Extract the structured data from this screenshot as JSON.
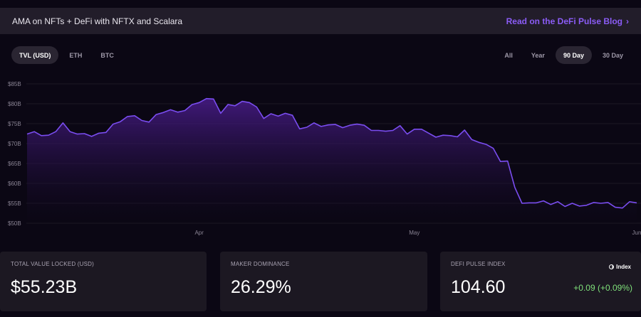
{
  "banner": {
    "text": "AMA on NFTs + DeFi with NFTX and Scalara",
    "link_label": "Read on the DeFi Pulse Blog",
    "link_chevron": "›"
  },
  "metric_tabs": [
    {
      "label": "TVL (USD)",
      "active": true
    },
    {
      "label": "ETH",
      "active": false
    },
    {
      "label": "BTC",
      "active": false
    }
  ],
  "range_tabs": [
    {
      "label": "All",
      "active": false
    },
    {
      "label": "Year",
      "active": false
    },
    {
      "label": "90 Day",
      "active": true
    },
    {
      "label": "30 Day",
      "active": false
    }
  ],
  "colors": {
    "accent": "#8b5cf6",
    "line": "#7a4df0",
    "positive": "#7fe07a",
    "background": "#0b0714"
  },
  "chart_data": {
    "type": "area",
    "title": "",
    "xlabel": "",
    "ylabel": "",
    "ylim": [
      50,
      85
    ],
    "y_ticks": [
      "$50B",
      "$55B",
      "$60B",
      "$65B",
      "$70B",
      "$75B",
      "$80B",
      "$85B"
    ],
    "y_tick_values": [
      50,
      55,
      60,
      65,
      70,
      75,
      80,
      85
    ],
    "x_ticks": [
      "Apr",
      "May",
      "Jun"
    ],
    "x_tick_days": [
      24,
      54,
      85
    ],
    "x_range": [
      0,
      85
    ],
    "grid": true,
    "series": [
      {
        "values": [
          72.4,
          73.0,
          72.0,
          72.1,
          73.0,
          75.2,
          73.0,
          72.4,
          72.5,
          71.8,
          72.6,
          72.8,
          74.9,
          75.5,
          76.8,
          77.0,
          75.8,
          75.4,
          77.3,
          77.8,
          78.5,
          77.9,
          78.3,
          79.8,
          80.3,
          81.3,
          81.2,
          77.6,
          79.8,
          79.5,
          80.6,
          80.3,
          79.2,
          76.3,
          77.5,
          76.9,
          77.6,
          77.1,
          73.7,
          74.1,
          75.2,
          74.3,
          74.7,
          74.8,
          74.0,
          74.6,
          74.9,
          74.6,
          73.3,
          73.3,
          73.1,
          73.3,
          74.5,
          72.4,
          73.6,
          73.6,
          72.6,
          71.6,
          72.1,
          72.0,
          71.7,
          73.4,
          71.0,
          70.3,
          69.8,
          68.8,
          65.5,
          65.6,
          59.0,
          55.0,
          55.1,
          55.1,
          55.6,
          54.7,
          55.4,
          54.2,
          55.0,
          54.3,
          54.5,
          55.2,
          55.0,
          55.2,
          54.0,
          53.8,
          55.4,
          55.1
        ]
      }
    ]
  },
  "cards": {
    "tvl": {
      "label": "TOTAL VALUE LOCKED (USD)",
      "value": "$55.23B"
    },
    "maker": {
      "label": "MAKER DOMINANCE",
      "value": "26.29%"
    },
    "index": {
      "label": "DEFI PULSE INDEX",
      "value": "104.60",
      "change": "+0.09  (+0.09%)",
      "link_label": "Index"
    }
  }
}
